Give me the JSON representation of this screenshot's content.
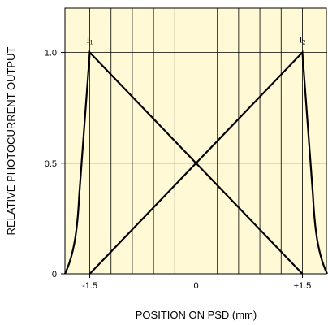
{
  "chart_data": {
    "type": "line",
    "title": "",
    "xlabel": "POSITION ON PSD (mm)",
    "ylabel": "RELATIVE PHOTOCURRENT OUTPUT",
    "xlim": [
      -1.85,
      1.85
    ],
    "ylim": [
      0,
      1.2
    ],
    "x_ticks": [
      {
        "value": -1.5,
        "label": "-1.5"
      },
      {
        "value": 0,
        "label": "0"
      },
      {
        "value": 1.5,
        "label": "+1.5"
      }
    ],
    "y_ticks": [
      {
        "value": 0,
        "label": "0"
      },
      {
        "value": 0.5,
        "label": "0.5"
      },
      {
        "value": 1.0,
        "label": "1.0"
      }
    ],
    "grid": true,
    "grid_x": [
      -1.5,
      -1.2,
      -0.9,
      -0.6,
      -0.3,
      0,
      0.3,
      0.6,
      0.9,
      1.2,
      1.5
    ],
    "grid_y": [
      0.5,
      1.0
    ],
    "colors": {
      "background": "#fff9d6",
      "line": "#000000",
      "grid": "#000000"
    },
    "series": [
      {
        "name": "I1",
        "points": [
          {
            "x": -1.85,
            "y": 0
          },
          {
            "x": -1.72,
            "y": 0.08
          },
          {
            "x": -1.65,
            "y": 0.35
          },
          {
            "x": -1.5,
            "y": 1.0
          },
          {
            "x": 1.5,
            "y": 0
          }
        ]
      },
      {
        "name": "I2",
        "points": [
          {
            "x": -1.5,
            "y": 0
          },
          {
            "x": 1.5,
            "y": 1.0
          },
          {
            "x": 1.65,
            "y": 0.35
          },
          {
            "x": 1.72,
            "y": 0.08
          },
          {
            "x": 1.85,
            "y": 0
          }
        ]
      }
    ],
    "annotations": [
      {
        "main": "I",
        "sub": "1",
        "x": -1.5,
        "y": 1.0
      },
      {
        "main": "I",
        "sub": "2",
        "x": 1.5,
        "y": 1.0
      }
    ]
  }
}
